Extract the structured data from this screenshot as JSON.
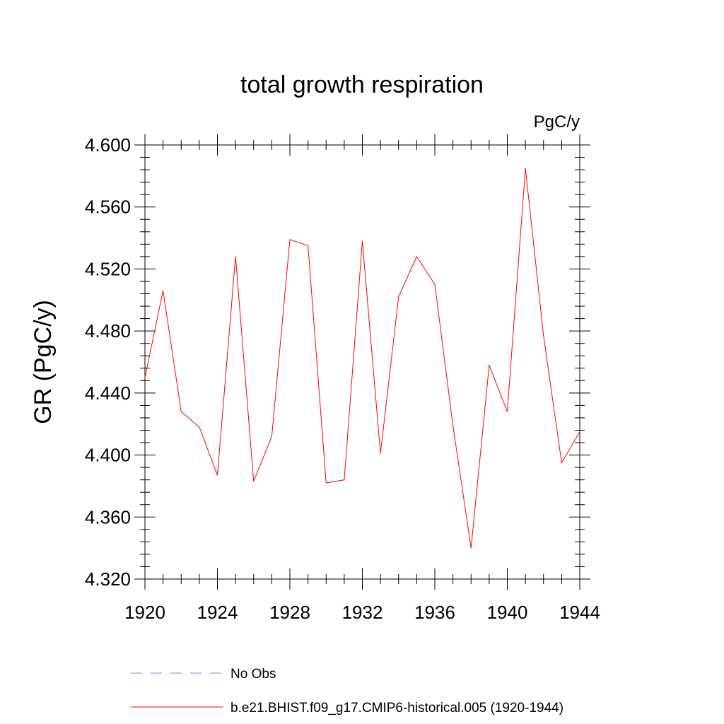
{
  "chart_data": {
    "type": "line",
    "title": "total growth respiration",
    "units_label": "PgC/y",
    "xlabel": "",
    "ylabel": "GR  (PgC/y)",
    "xlim": [
      1920,
      1944
    ],
    "ylim": [
      4.32,
      4.6
    ],
    "x_ticks": [
      1920,
      1924,
      1928,
      1932,
      1936,
      1940,
      1944
    ],
    "y_ticks": [
      "4.320",
      "4.360",
      "4.400",
      "4.440",
      "4.480",
      "4.520",
      "4.560",
      "4.600"
    ],
    "grid": false,
    "colors": {
      "series": "#ff0000",
      "obs": "#7f7fff",
      "axis": "#000000"
    },
    "series": [
      {
        "name": "b.e21.BHIST.f09_g17.CMIP6-historical.005 (1920-1944)",
        "style": "solid",
        "x": [
          1920,
          1921,
          1922,
          1923,
          1924,
          1925,
          1926,
          1927,
          1928,
          1929,
          1930,
          1931,
          1932,
          1933,
          1934,
          1935,
          1936,
          1937,
          1938,
          1939,
          1940,
          1941,
          1942,
          1943,
          1944
        ],
        "y": [
          4.45,
          4.506,
          4.428,
          4.418,
          4.387,
          4.528,
          4.383,
          4.412,
          4.539,
          4.535,
          4.382,
          4.384,
          4.538,
          4.401,
          4.502,
          4.528,
          4.51,
          4.419,
          4.34,
          4.458,
          4.428,
          4.585,
          4.477,
          4.395,
          4.415
        ]
      }
    ],
    "legend": [
      {
        "label": "No Obs",
        "style": "dashed"
      },
      {
        "label": "b.e21.BHIST.f09_g17.CMIP6-historical.005 (1920-1944)",
        "style": "solid"
      }
    ]
  }
}
